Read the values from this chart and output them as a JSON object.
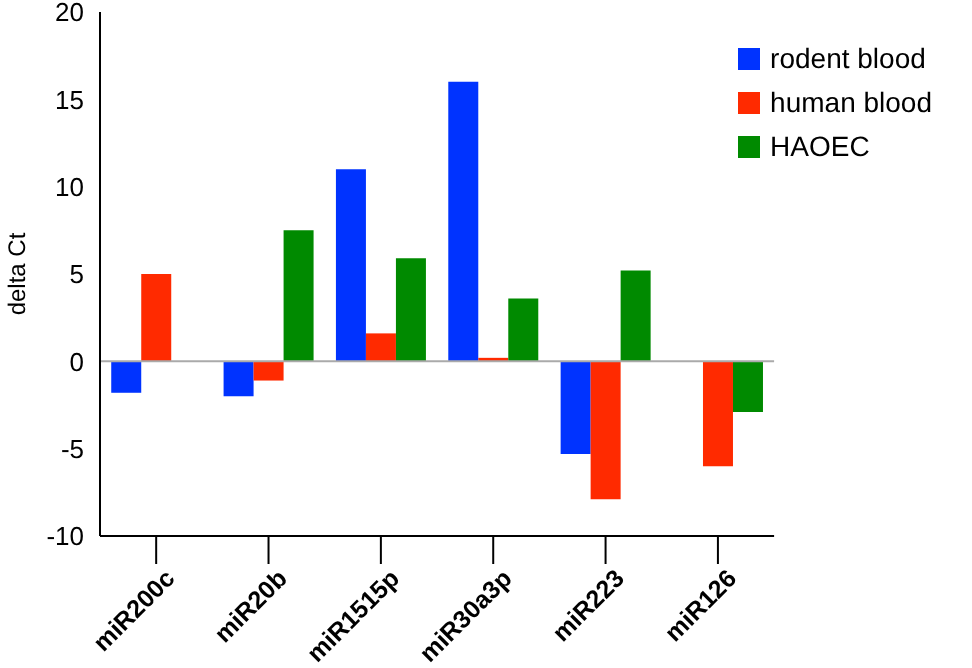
{
  "chart_data": {
    "type": "bar",
    "ylabel": "delta Ct",
    "categories": [
      "miR200c",
      "miR20b",
      "miR1515p",
      "miR30a3p",
      "miR223",
      "miR126"
    ],
    "series": [
      {
        "name": "rodent blood",
        "color": "#0033ff",
        "values": [
          -1.8,
          -2.0,
          11.0,
          16.0,
          -5.3,
          null
        ]
      },
      {
        "name": "human blood",
        "color": "#ff2a00",
        "values": [
          5.0,
          -1.1,
          1.6,
          0.2,
          -7.9,
          -6.0
        ]
      },
      {
        "name": "HAOEC",
        "color": "#008a00",
        "values": [
          null,
          7.5,
          5.9,
          3.6,
          5.2,
          -2.9
        ]
      }
    ],
    "ylim": [
      -10,
      20
    ],
    "yticks": [
      -10,
      -5,
      0,
      5,
      10,
      15,
      20
    ],
    "grid": false,
    "legend": "top right",
    "ref_lines": [
      {
        "axis": "y",
        "value": 0,
        "color": "#aaaaaa"
      }
    ]
  }
}
